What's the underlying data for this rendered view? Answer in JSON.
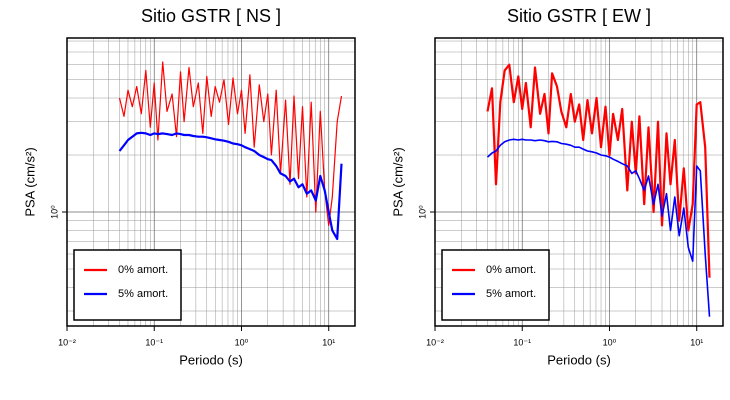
{
  "chart_data": [
    {
      "type": "line",
      "title": "Sitio GSTR [ NS ]",
      "x_label": "Periodo (s)",
      "y_label": "PSA (cm/s²)",
      "log_x": true,
      "log_y": true,
      "grid": true,
      "legend": "lower left",
      "xlim": [
        0.01,
        20
      ],
      "ylim": [
        0.25,
        8.3
      ],
      "xticks": [
        {
          "value": 0.01,
          "label": "10⁻²"
        },
        {
          "value": 0.1,
          "label": "10⁻¹"
        },
        {
          "value": 1,
          "label": "10⁰"
        },
        {
          "value": 10,
          "label": "10¹"
        }
      ],
      "yticks": [
        {
          "value": 1,
          "label": "10⁰"
        }
      ],
      "xgrid": [
        0.02,
        0.03,
        0.04,
        0.05,
        0.06,
        0.07,
        0.08,
        0.09,
        0.2,
        0.3,
        0.4,
        0.5,
        0.6,
        0.7,
        0.8,
        0.9,
        2,
        3,
        4,
        5,
        6,
        7,
        8,
        9
      ],
      "ygrid": [
        0.3,
        0.4,
        0.5,
        0.6,
        0.7,
        0.8,
        0.9,
        2,
        3,
        4,
        5,
        6,
        7,
        8
      ],
      "x": [
        0.04,
        0.045,
        0.05,
        0.056,
        0.063,
        0.071,
        0.08,
        0.09,
        0.1,
        0.11,
        0.125,
        0.14,
        0.16,
        0.18,
        0.2,
        0.22,
        0.25,
        0.28,
        0.32,
        0.36,
        0.4,
        0.45,
        0.5,
        0.56,
        0.63,
        0.71,
        0.8,
        0.9,
        1,
        1.1,
        1.25,
        1.4,
        1.6,
        1.8,
        2,
        2.2,
        2.5,
        2.8,
        3.2,
        3.6,
        4,
        4.5,
        5,
        5.6,
        6.3,
        7.1,
        8,
        9,
        10,
        11,
        12.5,
        14
      ],
      "series": [
        {
          "name": "0% amort.",
          "color": "#ff0000",
          "width": 1.2,
          "values": [
            4.0,
            3.2,
            4.4,
            3.6,
            4.6,
            3.3,
            5.6,
            2.8,
            4.8,
            2.4,
            6.2,
            3.4,
            4.2,
            2.5,
            5.5,
            3.0,
            5.8,
            3.6,
            4.8,
            2.6,
            5.2,
            3.2,
            4.6,
            3.8,
            5.0,
            2.9,
            5.1,
            3.3,
            4.4,
            2.6,
            5.3,
            2.2,
            4.7,
            3.0,
            4.2,
            2.0,
            4.4,
            1.6,
            3.9,
            1.4,
            4.1,
            1.5,
            3.6,
            1.2,
            3.8,
            1.0,
            3.4,
            1.3,
            0.85,
            1.2,
            3.0,
            4.1
          ]
        },
        {
          "name": "5% amort.",
          "color": "#0000ff",
          "width": 2.2,
          "values": [
            2.1,
            2.25,
            2.4,
            2.5,
            2.6,
            2.62,
            2.6,
            2.55,
            2.6,
            2.58,
            2.6,
            2.58,
            2.55,
            2.6,
            2.58,
            2.55,
            2.55,
            2.52,
            2.5,
            2.5,
            2.48,
            2.45,
            2.42,
            2.4,
            2.38,
            2.35,
            2.3,
            2.28,
            2.25,
            2.2,
            2.15,
            2.1,
            2.0,
            1.95,
            1.9,
            1.88,
            1.75,
            1.6,
            1.55,
            1.45,
            1.5,
            1.35,
            1.4,
            1.25,
            1.3,
            1.15,
            1.55,
            1.3,
            1.0,
            0.8,
            0.72,
            1.8
          ]
        }
      ]
    },
    {
      "type": "line",
      "title": "Sitio GSTR [ EW ]",
      "x_label": "Periodo (s)",
      "y_label": "PSA (cm/s²)",
      "log_x": true,
      "log_y": true,
      "grid": true,
      "legend": "lower left",
      "xlim": [
        0.01,
        20
      ],
      "ylim": [
        0.25,
        8.3
      ],
      "xticks": [
        {
          "value": 0.01,
          "label": "10⁻²"
        },
        {
          "value": 0.1,
          "label": "10⁻¹"
        },
        {
          "value": 1,
          "label": "10⁰"
        },
        {
          "value": 10,
          "label": "10¹"
        }
      ],
      "yticks": [
        {
          "value": 1,
          "label": "10⁰"
        }
      ],
      "xgrid": [
        0.02,
        0.03,
        0.04,
        0.05,
        0.06,
        0.07,
        0.08,
        0.09,
        0.2,
        0.3,
        0.4,
        0.5,
        0.6,
        0.7,
        0.8,
        0.9,
        2,
        3,
        4,
        5,
        6,
        7,
        8,
        9
      ],
      "ygrid": [
        0.3,
        0.4,
        0.5,
        0.6,
        0.7,
        0.8,
        0.9,
        2,
        3,
        4,
        5,
        6,
        7,
        8
      ],
      "x": [
        0.04,
        0.045,
        0.05,
        0.056,
        0.063,
        0.071,
        0.08,
        0.09,
        0.1,
        0.11,
        0.125,
        0.14,
        0.16,
        0.18,
        0.2,
        0.22,
        0.25,
        0.28,
        0.32,
        0.36,
        0.4,
        0.45,
        0.5,
        0.56,
        0.63,
        0.71,
        0.8,
        0.9,
        1,
        1.1,
        1.25,
        1.4,
        1.6,
        1.8,
        2,
        2.2,
        2.5,
        2.8,
        3.2,
        3.6,
        4,
        4.5,
        5,
        5.6,
        6.3,
        7.1,
        8,
        9,
        10,
        11,
        12.5,
        14
      ],
      "series": [
        {
          "name": "0% amort.",
          "color": "#ff0000",
          "width": 2.2,
          "values": [
            3.4,
            4.5,
            1.4,
            3.8,
            5.6,
            6.0,
            3.8,
            5.2,
            3.5,
            4.8,
            2.8,
            5.8,
            3.3,
            4.2,
            2.6,
            5.4,
            4.6,
            3.4,
            2.8,
            4.2,
            3.0,
            3.7,
            2.4,
            3.9,
            2.6,
            4.0,
            2.2,
            3.6,
            2.0,
            3.3,
            2.4,
            3.5,
            1.3,
            3.0,
            1.6,
            3.2,
            1.1,
            2.8,
            1.0,
            3.0,
            0.85,
            2.6,
            1.4,
            2.4,
            0.9,
            1.7,
            0.8,
            1.1,
            3.7,
            3.8,
            2.2,
            0.45
          ]
        },
        {
          "name": "5% amort.",
          "color": "#0000ff",
          "width": 1.6,
          "values": [
            1.95,
            2.05,
            2.1,
            2.25,
            2.35,
            2.4,
            2.42,
            2.4,
            2.42,
            2.4,
            2.4,
            2.38,
            2.4,
            2.38,
            2.35,
            2.36,
            2.35,
            2.3,
            2.28,
            2.25,
            2.2,
            2.2,
            2.15,
            2.1,
            2.08,
            2.05,
            2.0,
            1.98,
            1.95,
            1.9,
            1.85,
            1.8,
            1.75,
            1.6,
            1.65,
            1.5,
            1.3,
            1.55,
            1.1,
            1.4,
            0.95,
            1.25,
            0.8,
            1.2,
            0.75,
            1.05,
            0.65,
            0.55,
            1.75,
            1.65,
            0.6,
            0.28
          ]
        }
      ]
    }
  ]
}
